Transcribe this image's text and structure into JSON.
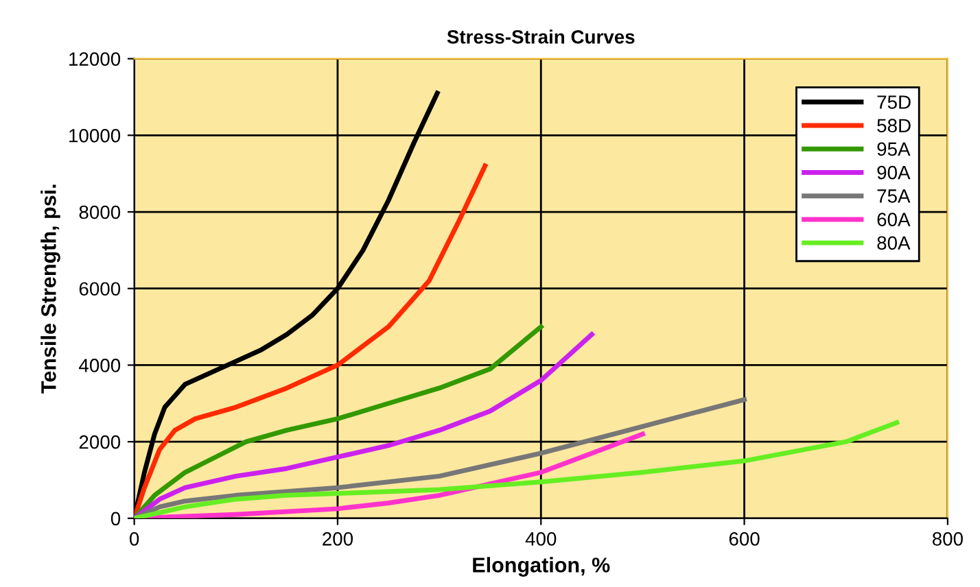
{
  "chart_data": {
    "type": "line",
    "title": "Stress-Strain Curves",
    "xlabel": "Elongation, %",
    "ylabel": "Tensile Strength, psi.",
    "xlim": [
      0,
      800
    ],
    "xticks": [
      0,
      200,
      400,
      600,
      800
    ],
    "ylim": [
      0,
      12000
    ],
    "yticks": [
      0,
      2000,
      4000,
      6000,
      8000,
      10000,
      12000
    ],
    "grid": true,
    "legend": "top right",
    "marker": "none",
    "line_style": "solid",
    "series": [
      {
        "name": "75D",
        "color": "#000000",
        "x": [
          0,
          10,
          20,
          30,
          50,
          75,
          100,
          125,
          150,
          175,
          200,
          225,
          250,
          275,
          298
        ],
        "values": [
          0,
          1200,
          2200,
          2900,
          3500,
          3800,
          4100,
          4400,
          4800,
          5300,
          6000,
          7000,
          8300,
          9800,
          11100
        ]
      },
      {
        "name": "58D",
        "color": "#ff2a00",
        "x": [
          0,
          10,
          25,
          40,
          60,
          100,
          150,
          200,
          250,
          290,
          320,
          345
        ],
        "values": [
          0,
          800,
          1800,
          2300,
          2600,
          2900,
          3400,
          4000,
          5000,
          6200,
          7800,
          9200
        ]
      },
      {
        "name": "95A",
        "color": "#339900",
        "x": [
          0,
          20,
          50,
          80,
          110,
          150,
          200,
          250,
          300,
          350,
          400
        ],
        "values": [
          0,
          600,
          1200,
          1600,
          2000,
          2300,
          2600,
          3000,
          3400,
          3900,
          5000
        ]
      },
      {
        "name": "90A",
        "color": "#cc22ee",
        "x": [
          0,
          25,
          50,
          100,
          150,
          200,
          250,
          300,
          350,
          400,
          450
        ],
        "values": [
          0,
          500,
          800,
          1100,
          1300,
          1600,
          1900,
          2300,
          2800,
          3600,
          4800
        ]
      },
      {
        "name": "75A",
        "color": "#777777",
        "x": [
          0,
          25,
          50,
          100,
          200,
          300,
          400,
          500,
          600
        ],
        "values": [
          0,
          300,
          450,
          600,
          800,
          1100,
          1700,
          2400,
          3100
        ]
      },
      {
        "name": "60A",
        "color": "#ff33cc",
        "x": [
          0,
          50,
          100,
          200,
          250,
          300,
          350,
          400,
          450,
          500
        ],
        "values": [
          0,
          50,
          100,
          250,
          400,
          600,
          900,
          1200,
          1700,
          2200
        ]
      },
      {
        "name": "80A",
        "color": "#66ee22",
        "x": [
          0,
          50,
          100,
          150,
          200,
          300,
          400,
          500,
          600,
          700,
          750
        ],
        "values": [
          0,
          300,
          500,
          600,
          650,
          750,
          950,
          1200,
          1500,
          2000,
          2500
        ]
      }
    ]
  }
}
